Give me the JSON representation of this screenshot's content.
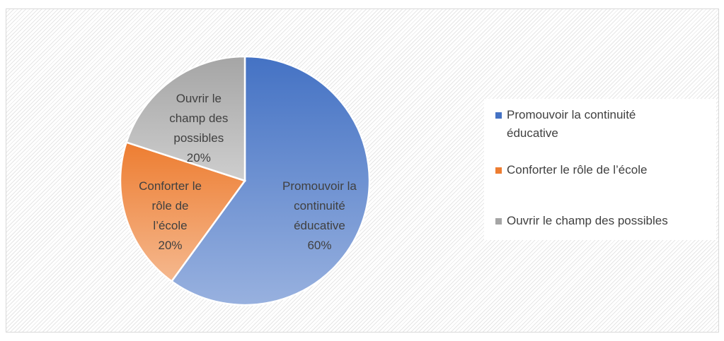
{
  "chart_data": {
    "type": "pie",
    "categories": [
      "Promouvoir la continuité éducative",
      "Conforter le rôle de l’école",
      "Ouvrir le champ des possibles"
    ],
    "values": [
      60,
      20,
      20
    ],
    "value_labels": [
      "60%",
      "20%",
      "20%"
    ],
    "colors": [
      "#4472c4",
      "#ed7d31",
      "#a5a5a5"
    ],
    "legend": "right"
  }
}
